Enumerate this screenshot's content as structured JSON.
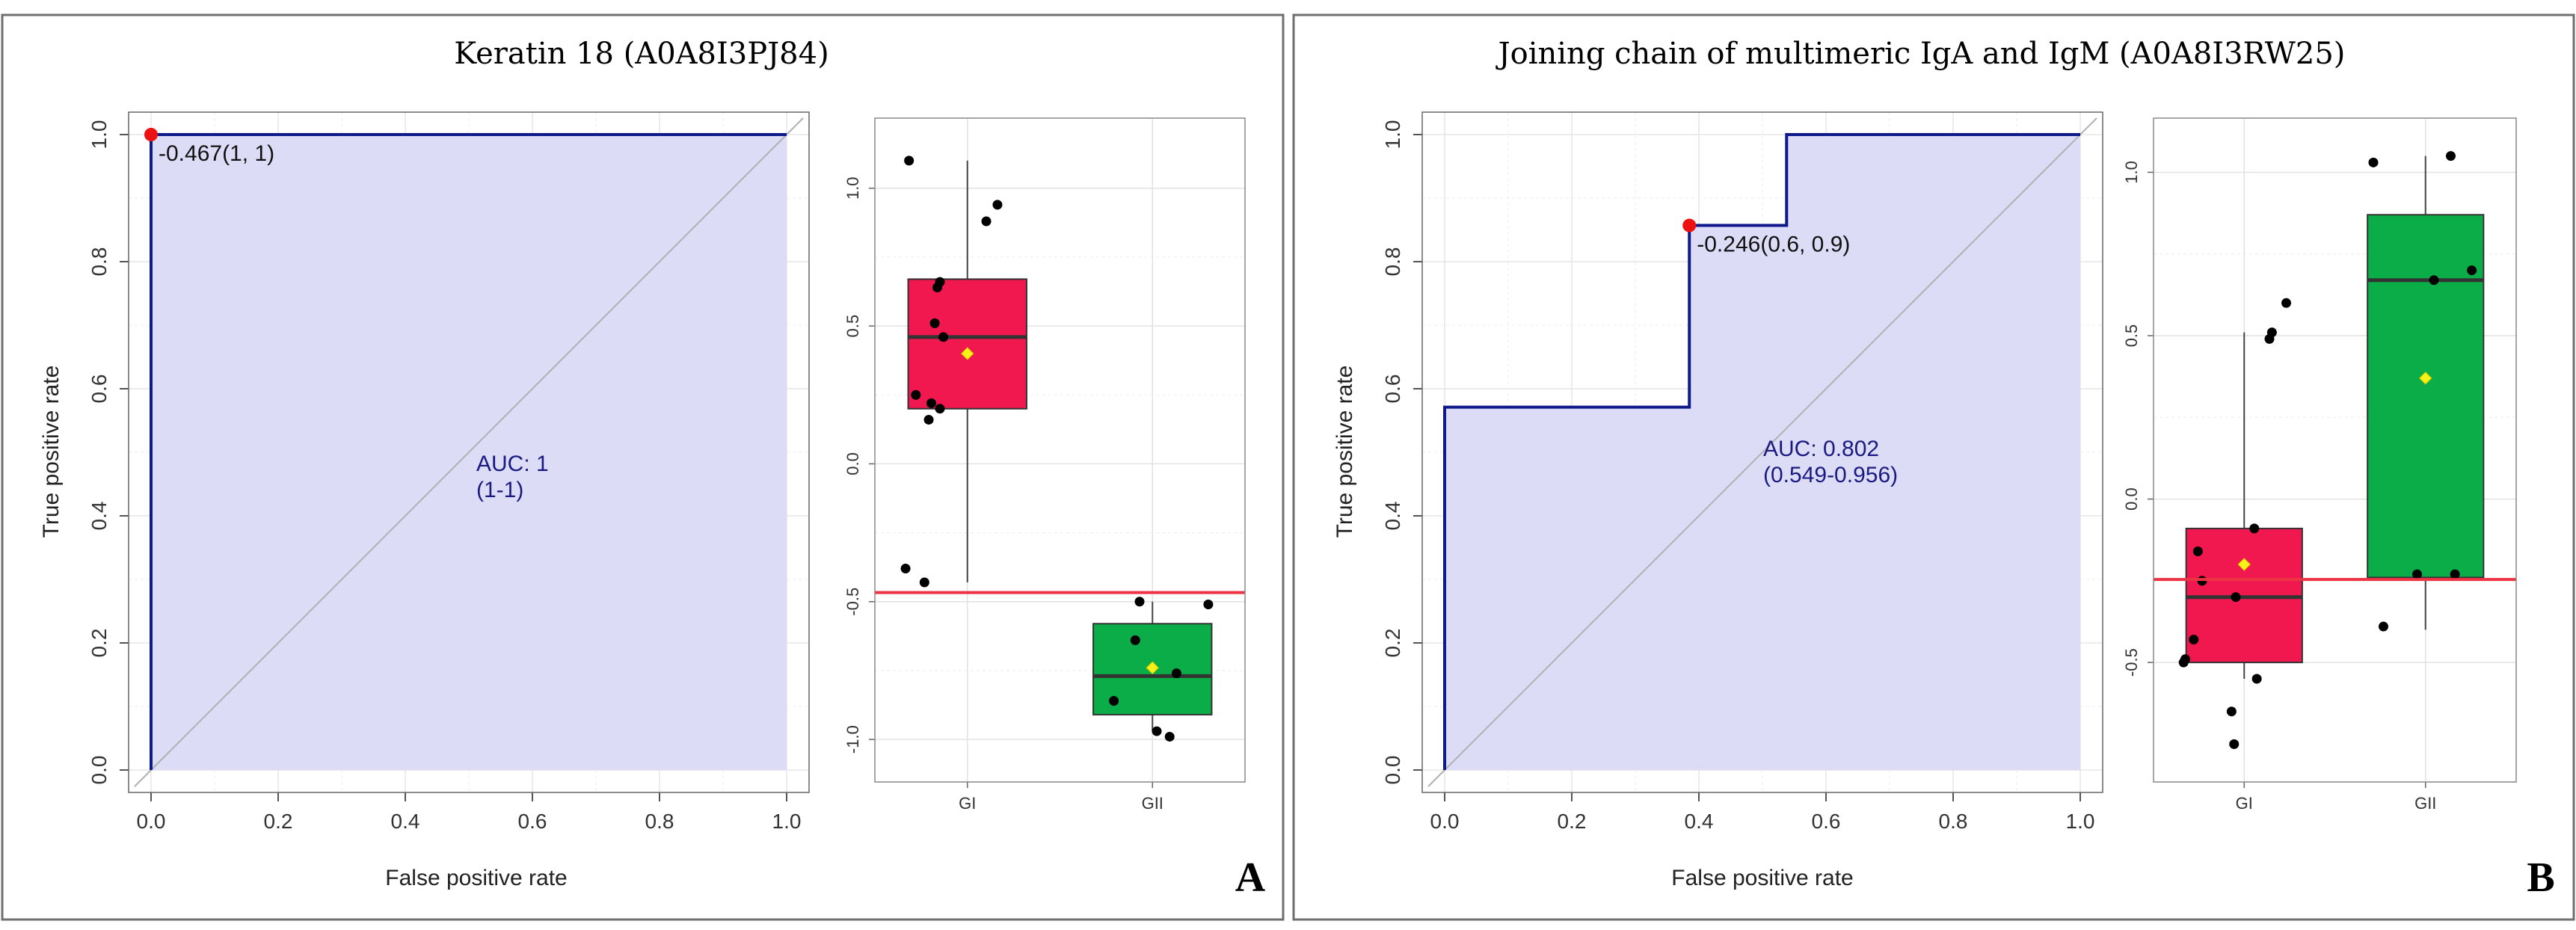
{
  "chart_data": [
    {
      "panel": "A",
      "title": "Keratin 18 (A0A8I3PJ84)",
      "roc": {
        "type": "line",
        "xlabel": "False positive rate",
        "ylabel": "True positive rate",
        "xlim": [
          0,
          1
        ],
        "ylim": [
          0,
          1
        ],
        "ticks": [
          "0.0",
          "0.2",
          "0.4",
          "0.6",
          "0.8",
          "1.0"
        ],
        "curve": [
          [
            0,
            0
          ],
          [
            0,
            1
          ],
          [
            1,
            1
          ]
        ],
        "cutoff_point": [
          0,
          1
        ],
        "cutoff_label": "-0.467(1, 1)",
        "auc_label": "AUC: 1",
        "ci_label": "(1-1)"
      },
      "boxplot": {
        "type": "box",
        "categories": [
          "GI",
          "GII"
        ],
        "ylim": [
          -1.1,
          1.2
        ],
        "yticks": [
          1.0,
          0.5,
          0.0,
          -0.5,
          -1.0
        ],
        "ytick_labels": [
          "1.0",
          "0.5",
          "0.0",
          "-0.5",
          "-1.0"
        ],
        "threshold": -0.467,
        "groups": [
          {
            "name": "GI",
            "color": "#f0184f",
            "min": -0.43,
            "q1": 0.2,
            "median": 0.46,
            "q3": 0.67,
            "max": 1.1,
            "mean": 0.4,
            "points": [
              [
                -0.68,
                1.1
              ],
              [
                -0.72,
                -0.38
              ],
              [
                -0.5,
                -0.43
              ],
              [
                -0.45,
                0.16
              ],
              [
                -0.42,
                0.22
              ],
              [
                -0.32,
                0.2
              ],
              [
                -0.38,
                0.51
              ],
              [
                -0.35,
                0.64
              ],
              [
                -0.32,
                0.66
              ],
              [
                -0.28,
                0.46
              ],
              [
                0.22,
                0.88
              ],
              [
                0.35,
                0.94
              ],
              [
                -0.6,
                0.25
              ]
            ]
          },
          {
            "name": "GII",
            "color": "#0aad48",
            "min": -0.97,
            "q1": -0.91,
            "median": -0.77,
            "q3": -0.58,
            "max": -0.5,
            "mean": -0.74,
            "points": [
              [
                -0.45,
                -0.86
              ],
              [
                -0.2,
                -0.64
              ],
              [
                -0.15,
                -0.5
              ],
              [
                0.05,
                -0.97
              ],
              [
                0.2,
                -0.99
              ],
              [
                0.28,
                -0.76
              ],
              [
                0.65,
                -0.51
              ]
            ]
          }
        ]
      }
    },
    {
      "panel": "B",
      "title": "Joining chain of multimeric IgA and IgM (A0A8I3RW25)",
      "roc": {
        "type": "line",
        "xlabel": "False positive rate",
        "ylabel": "True positive rate",
        "xlim": [
          0,
          1
        ],
        "ylim": [
          0,
          1
        ],
        "ticks": [
          "0.0",
          "0.2",
          "0.4",
          "0.6",
          "0.8",
          "1.0"
        ],
        "curve": [
          [
            0,
            0
          ],
          [
            0,
            0.571
          ],
          [
            0.385,
            0.571
          ],
          [
            0.385,
            0.857
          ],
          [
            0.538,
            0.857
          ],
          [
            0.538,
            1
          ],
          [
            1,
            1
          ]
        ],
        "cutoff_point": [
          0.385,
          0.857
        ],
        "cutoff_label": "-0.246(0.6, 0.9)",
        "auc_label": "AUC: 0.802",
        "ci_label": "(0.549-0.956)"
      },
      "boxplot": {
        "type": "box",
        "categories": [
          "GI",
          "GII"
        ],
        "ylim": [
          -0.82,
          1.12
        ],
        "yticks": [
          1.0,
          0.5,
          0.0,
          -0.5
        ],
        "ytick_labels": [
          "1.0",
          "0.5",
          "0.0",
          "-0.5"
        ],
        "threshold": -0.246,
        "groups": [
          {
            "name": "GI",
            "color": "#f0184f",
            "min": -0.55,
            "q1": -0.5,
            "median": -0.3,
            "q3": -0.09,
            "max": 0.51,
            "mean": -0.2,
            "points": [
              [
                -0.72,
                -0.5
              ],
              [
                -0.7,
                -0.49
              ],
              [
                -0.6,
                -0.43
              ],
              [
                -0.55,
                -0.16
              ],
              [
                -0.5,
                -0.25
              ],
              [
                -0.15,
                -0.65
              ],
              [
                -0.12,
                -0.75
              ],
              [
                -0.1,
                -0.3
              ],
              [
                0.15,
                -0.55
              ],
              [
                0.12,
                -0.09
              ],
              [
                0.3,
                0.49
              ],
              [
                0.33,
                0.51
              ],
              [
                0.5,
                0.6
              ]
            ]
          },
          {
            "name": "GII",
            "color": "#0aad48",
            "min": -0.4,
            "q1": -0.24,
            "median": 0.67,
            "q3": 0.87,
            "max": 1.05,
            "mean": 0.37,
            "points": [
              [
                -0.62,
                1.03
              ],
              [
                -0.5,
                -0.39
              ],
              [
                -0.1,
                -0.23
              ],
              [
                0.1,
                0.67
              ],
              [
                0.3,
                1.05
              ],
              [
                0.35,
                -0.23
              ],
              [
                0.55,
                0.7
              ]
            ]
          }
        ]
      }
    }
  ]
}
